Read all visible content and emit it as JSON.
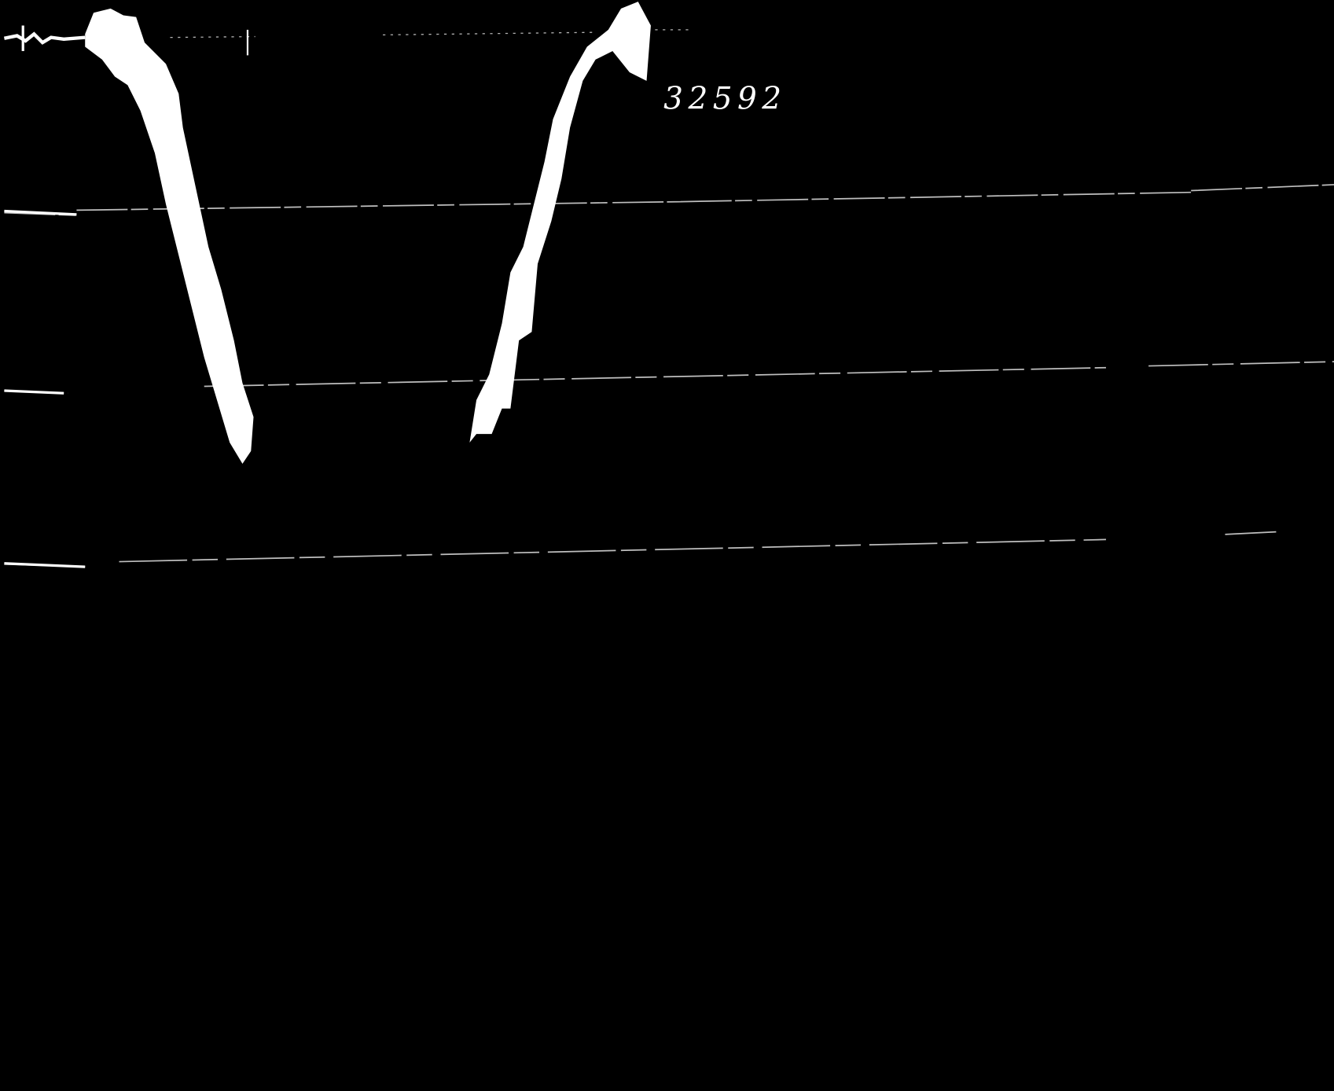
{
  "label": "32592"
}
